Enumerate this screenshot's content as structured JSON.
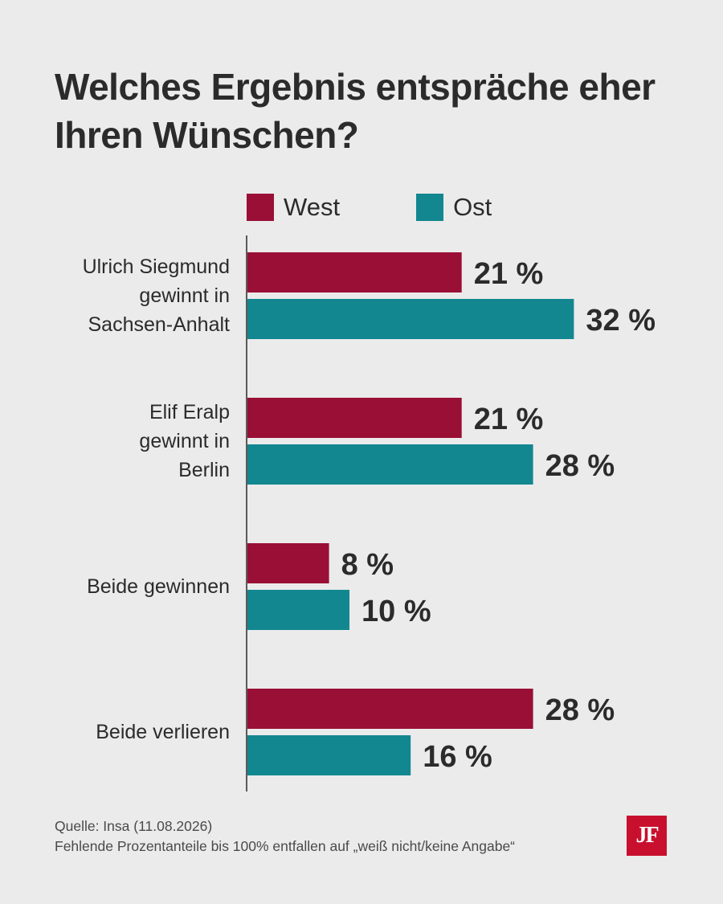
{
  "title": "Welches Ergebnis entspräche eher Ihren Wünschen?",
  "legend": [
    {
      "label": "West",
      "color": "#9a0f36"
    },
    {
      "label": "Ost",
      "color": "#128790"
    }
  ],
  "chart_data": {
    "type": "bar",
    "orientation": "horizontal",
    "categories": [
      "Ulrich Siegmund gewinnt in Sachsen-Anhalt",
      "Elif Eralp gewinnt in Berlin",
      "Beide gewinnen",
      "Beide verlieren"
    ],
    "category_lines": [
      [
        "Ulrich Siegmund",
        "gewinnt in",
        "Sachsen-Anhalt"
      ],
      [
        "Elif Eralp",
        "gewinnt in",
        "Berlin"
      ],
      [
        "Beide gewinnen"
      ],
      [
        "Beide verlieren"
      ]
    ],
    "series": [
      {
        "name": "West",
        "values": [
          21,
          21,
          8,
          28
        ],
        "labels": [
          "21 %",
          "21 %",
          "8 %",
          "28 %"
        ],
        "color": "#9a0f36"
      },
      {
        "name": "Ost",
        "values": [
          32,
          28,
          10,
          16
        ],
        "labels": [
          "32 %",
          "28 %",
          "10 %",
          "16 %"
        ],
        "color": "#128790"
      }
    ],
    "xlim": [
      0,
      35
    ],
    "grid": false,
    "legend_position": "top"
  },
  "footer": {
    "source": "Quelle: Insa (11.08.2026)",
    "note": "Fehlende Prozentanteile bis 100% entfallen auf „weiß nicht/keine Angabe“"
  },
  "logo": {
    "text": "JF",
    "color": "#c8102e"
  }
}
